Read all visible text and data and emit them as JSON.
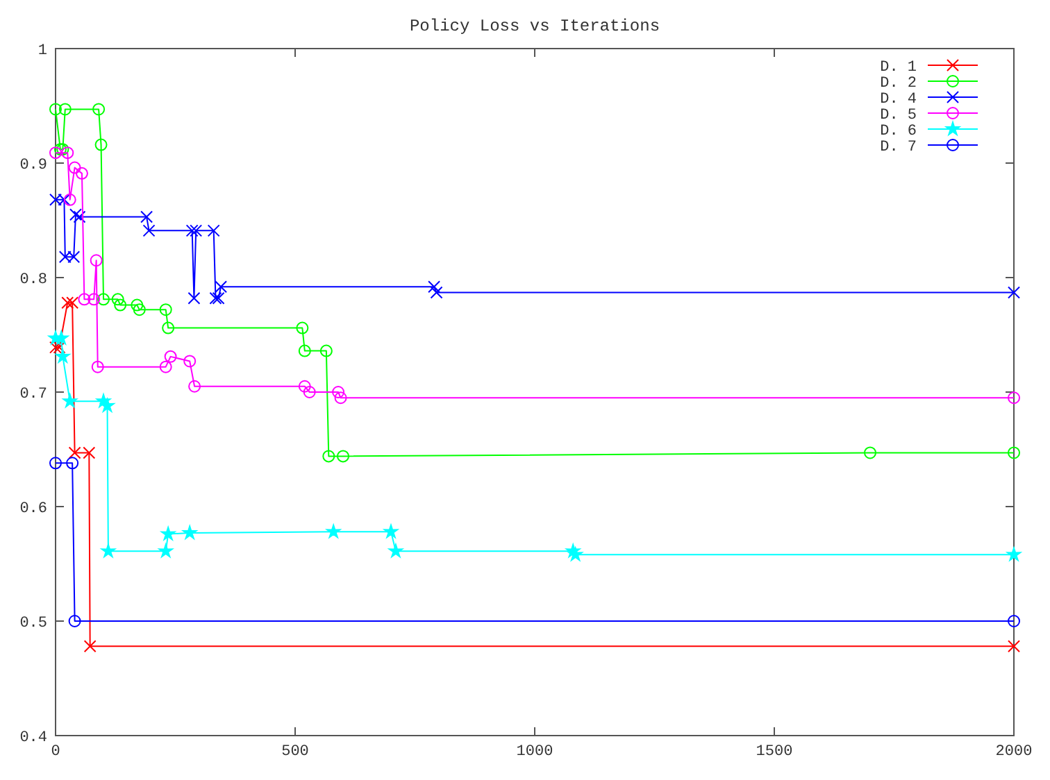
{
  "chart_data": {
    "type": "line",
    "title": "Policy Loss vs Iterations",
    "xlim": [
      0,
      2000
    ],
    "xticks": [
      0,
      500,
      1000,
      1500,
      2000
    ],
    "ylim": [
      0.4,
      1
    ],
    "yticks": [
      0.4,
      0.5,
      0.6,
      0.7,
      0.8,
      0.9,
      1
    ],
    "grid": false,
    "legend": "top right",
    "line_style": "solid",
    "series": [
      {
        "name": "D. 1",
        "color": "#ff0000",
        "marker": "cross",
        "x": [
          0,
          8,
          25,
          35,
          40,
          70,
          72,
          2000
        ],
        "values": [
          0.739,
          0.739,
          0.778,
          0.778,
          0.647,
          0.647,
          0.478,
          0.478
        ]
      },
      {
        "name": "D. 2",
        "color": "#00ff00",
        "marker": "circle",
        "x": [
          0,
          10,
          15,
          20,
          90,
          95,
          100,
          130,
          135,
          170,
          175,
          230,
          235,
          515,
          520,
          565,
          570,
          600,
          1700,
          2000
        ],
        "values": [
          0.947,
          0.912,
          0.912,
          0.947,
          0.947,
          0.916,
          0.781,
          0.781,
          0.776,
          0.776,
          0.772,
          0.772,
          0.756,
          0.756,
          0.736,
          0.736,
          0.644,
          0.644,
          0.647,
          0.647
        ]
      },
      {
        "name": "D. 4",
        "color": "#0000ff",
        "marker": "cross",
        "x": [
          0,
          18,
          20,
          38,
          42,
          50,
          190,
          195,
          285,
          289,
          293,
          330,
          334,
          340,
          345,
          790,
          795,
          2000
        ],
        "values": [
          0.868,
          0.868,
          0.818,
          0.818,
          0.855,
          0.853,
          0.853,
          0.841,
          0.841,
          0.782,
          0.841,
          0.841,
          0.782,
          0.782,
          0.792,
          0.792,
          0.787,
          0.787
        ]
      },
      {
        "name": "D. 5",
        "color": "#ff00ff",
        "marker": "circle",
        "x": [
          0,
          25,
          30,
          40,
          55,
          60,
          80,
          85,
          88,
          230,
          240,
          280,
          290,
          520,
          530,
          590,
          595,
          2000
        ],
        "values": [
          0.909,
          0.909,
          0.868,
          0.896,
          0.891,
          0.781,
          0.781,
          0.815,
          0.722,
          0.722,
          0.731,
          0.727,
          0.705,
          0.705,
          0.7,
          0.7,
          0.695,
          0.695
        ]
      },
      {
        "name": "D. 6",
        "color": "#00ffff",
        "marker": "star",
        "x": [
          0,
          12,
          15,
          30,
          100,
          108,
          110,
          230,
          235,
          280,
          580,
          700,
          710,
          1080,
          1085,
          2000
        ],
        "values": [
          0.747,
          0.747,
          0.731,
          0.692,
          0.692,
          0.688,
          0.561,
          0.561,
          0.576,
          0.577,
          0.578,
          0.578,
          0.561,
          0.561,
          0.558,
          0.558
        ]
      },
      {
        "name": "D. 7",
        "color": "#0000ff",
        "marker": "circle",
        "x": [
          0,
          35,
          40,
          2000
        ],
        "values": [
          0.638,
          0.638,
          0.5,
          0.5
        ]
      }
    ]
  }
}
